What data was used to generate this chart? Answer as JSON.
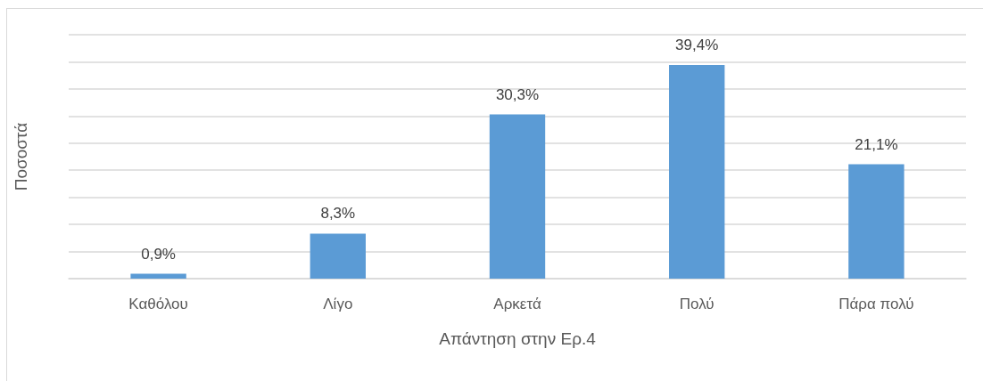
{
  "chart_data": {
    "type": "bar",
    "xlabel": "Απάντηση στην Ερ.4",
    "ylabel": "Ποσοστά",
    "categories": [
      "Καθόλου",
      "Λίγο",
      "Αρκετά",
      "Πολύ",
      "Πάρα πολύ"
    ],
    "values": [
      0.9,
      8.3,
      30.3,
      39.4,
      21.1
    ],
    "color": "#5b9bd5",
    "value_labels": [
      "0,9%",
      "8,3%",
      "30,3%",
      "39,4%",
      "21,1%"
    ],
    "ylim": [
      0,
      45
    ],
    "yticks": [
      {
        "value": 0,
        "label": null
      },
      {
        "value": 5,
        "label": null
      },
      {
        "value": 10,
        "label": null
      },
      {
        "value": 15,
        "label": null
      },
      {
        "value": 20,
        "label": null
      },
      {
        "value": 25,
        "label": null
      },
      {
        "value": 30,
        "label": null
      },
      {
        "value": 35,
        "label": null
      },
      {
        "value": 40,
        "label": null
      },
      {
        "value": 45,
        "label": null
      }
    ],
    "tick_labels": "x",
    "grid": "y"
  }
}
